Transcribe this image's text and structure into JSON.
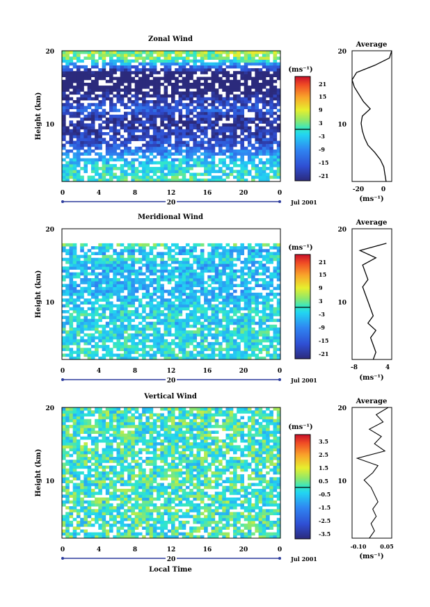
{
  "panels": [
    {
      "title": "Zonal Wind",
      "ylabel": "Height (km)",
      "yticks": [
        "20",
        "10"
      ],
      "xticks": [
        "0",
        "4",
        "8",
        "12",
        "16",
        "20",
        "0"
      ],
      "day_label": "20",
      "date_label": "Jul 2001",
      "unit_label": "(ms⁻¹)",
      "colorbar_ticks": [
        "21",
        "15",
        "9",
        "3",
        "-3",
        "-9",
        "-15",
        "-21"
      ],
      "avg_title": "Average",
      "avg_yticks": [
        "20",
        "10"
      ],
      "avg_xticks": [
        "-20",
        "0"
      ],
      "avg_unit": "(ms⁻¹)"
    },
    {
      "title": "Meridional Wind",
      "ylabel": "Height (km)",
      "yticks": [
        "20",
        "10"
      ],
      "xticks": [
        "0",
        "4",
        "8",
        "12",
        "16",
        "20",
        "0"
      ],
      "day_label": "20",
      "date_label": "Jul 2001",
      "unit_label": "(ms⁻¹)",
      "colorbar_ticks": [
        "21",
        "15",
        "9",
        "3",
        "-3",
        "-9",
        "-15",
        "-21"
      ],
      "avg_title": "Average",
      "avg_yticks": [
        "20",
        "10"
      ],
      "avg_xticks": [
        "-8",
        "4"
      ],
      "avg_unit": "(ms⁻¹)"
    },
    {
      "title": "Vertical Wind",
      "ylabel": "Height (km)",
      "yticks": [
        "20",
        "10"
      ],
      "xticks": [
        "0",
        "4",
        "8",
        "12",
        "16",
        "20",
        "0"
      ],
      "day_label": "20",
      "date_label": "Jul 2001",
      "unit_label": "(ms⁻¹)",
      "colorbar_ticks": [
        "3.5",
        "2.5",
        "1.5",
        "0.5",
        "-0.5",
        "-1.5",
        "-2.5",
        "-3.5"
      ],
      "avg_title": "Average",
      "avg_yticks": [
        "20",
        "10"
      ],
      "avg_xticks": [
        "-0.10",
        "0.05"
      ],
      "avg_unit": "(ms⁻¹)",
      "xlabel": "Local Time"
    }
  ],
  "chart_data": [
    {
      "type": "heatmap",
      "title": "Zonal Wind",
      "xlabel": "",
      "ylabel": "Height (km)",
      "xlim_hours": [
        0,
        24
      ],
      "ylim_km": [
        2,
        20
      ],
      "colorbar_range": [
        -24,
        24
      ],
      "colorbar_unit": "ms-1",
      "profile": {
        "heights_km": [
          2,
          3,
          4,
          5,
          6,
          7,
          8,
          9,
          10,
          11,
          12,
          13,
          14,
          15,
          16,
          17,
          18,
          19,
          20
        ],
        "values": [
          0,
          -1,
          -2,
          -5,
          -10,
          -16,
          -19,
          -21,
          -22,
          -21,
          -14,
          -20,
          -24,
          -28,
          -30,
          -26,
          -10,
          3,
          5
        ]
      },
      "profile_xlim": [
        -30,
        5
      ]
    },
    {
      "type": "heatmap",
      "title": "Meridional Wind",
      "xlabel": "",
      "ylabel": "Height (km)",
      "xlim_hours": [
        0,
        24
      ],
      "ylim_km": [
        2,
        20
      ],
      "colorbar_range": [
        -24,
        24
      ],
      "colorbar_unit": "ms-1",
      "profile": {
        "heights_km": [
          2,
          3,
          4,
          5,
          6,
          7,
          8,
          9,
          10,
          11,
          12,
          13,
          14,
          15,
          16,
          17,
          18
        ],
        "values": [
          -2,
          -1,
          -2,
          -3,
          -1,
          -4,
          -2,
          -3,
          -4,
          -5,
          -6,
          -4,
          -5,
          -6,
          -1,
          -7,
          3
        ]
      },
      "profile_xlim": [
        -10,
        5
      ]
    },
    {
      "type": "heatmap",
      "title": "Vertical Wind",
      "xlabel": "Local Time",
      "ylabel": "Height (km)",
      "xlim_hours": [
        0,
        24
      ],
      "ylim_km": [
        2,
        20
      ],
      "colorbar_range": [
        -4,
        4
      ],
      "colorbar_unit": "ms-1",
      "profile": {
        "heights_km": [
          2,
          3,
          4,
          5,
          6,
          7,
          8,
          9,
          10,
          11,
          12,
          13,
          14,
          15,
          16,
          17,
          18,
          19,
          20
        ],
        "values": [
          -0.05,
          -0.02,
          -0.04,
          -0.01,
          -0.03,
          0.0,
          -0.02,
          -0.04,
          -0.08,
          -0.03,
          0.0,
          -0.12,
          0.04,
          -0.02,
          0.02,
          -0.05,
          0.03,
          -0.01,
          0.06
        ]
      },
      "profile_xlim": [
        -0.15,
        0.08
      ]
    }
  ]
}
